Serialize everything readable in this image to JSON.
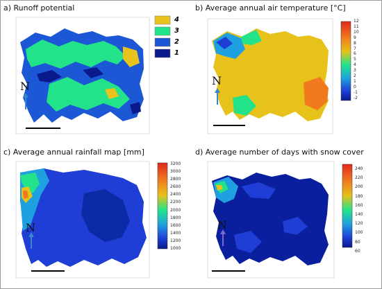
{
  "panels": [
    {
      "title": "a) Runoff potential",
      "legend_type": "classes",
      "classes": [
        {
          "label": "4",
          "color": "#e8c31e"
        },
        {
          "label": "3",
          "color": "#22e38a"
        },
        {
          "label": "2",
          "color": "#1c57d6"
        },
        {
          "label": "1",
          "color": "#0a1a8c"
        }
      ],
      "north_label": "N"
    },
    {
      "title": "b) Average annual air temperature [°C]",
      "legend_type": "colorbar",
      "ticks": [
        "12",
        "11",
        "10",
        "9",
        "8",
        "7",
        "6",
        "5",
        "4",
        "3",
        "2",
        "1",
        "0",
        "-1",
        "-2"
      ],
      "north_label": "N"
    },
    {
      "title": "c) Average annual rainfall map [mm]",
      "legend_type": "colorbar",
      "ticks": [
        "3200",
        "3000",
        "2800",
        "2600",
        "2400",
        "2200",
        "2000",
        "1800",
        "1600",
        "1400",
        "1200",
        "1000"
      ],
      "north_label": "N"
    },
    {
      "title": "d) Average number of days with snow cover",
      "legend_type": "colorbar",
      "ticks": [
        "240",
        "220",
        "200",
        "180",
        "160",
        "140",
        "120",
        "100",
        "80",
        "60"
      ],
      "north_label": "N"
    }
  ],
  "colors": {
    "runoff_4": "#e8c31e",
    "runoff_3": "#22e38a",
    "runoff_2": "#1c57d6",
    "runoff_1": "#0a1a8c",
    "temperature_warm": "#e6c21a",
    "temperature_hot": "#f07a1e",
    "rainfall_low": "#1e3ed6",
    "snow_low": "#0a1f9e",
    "north_arrow": "#3a88c8"
  }
}
